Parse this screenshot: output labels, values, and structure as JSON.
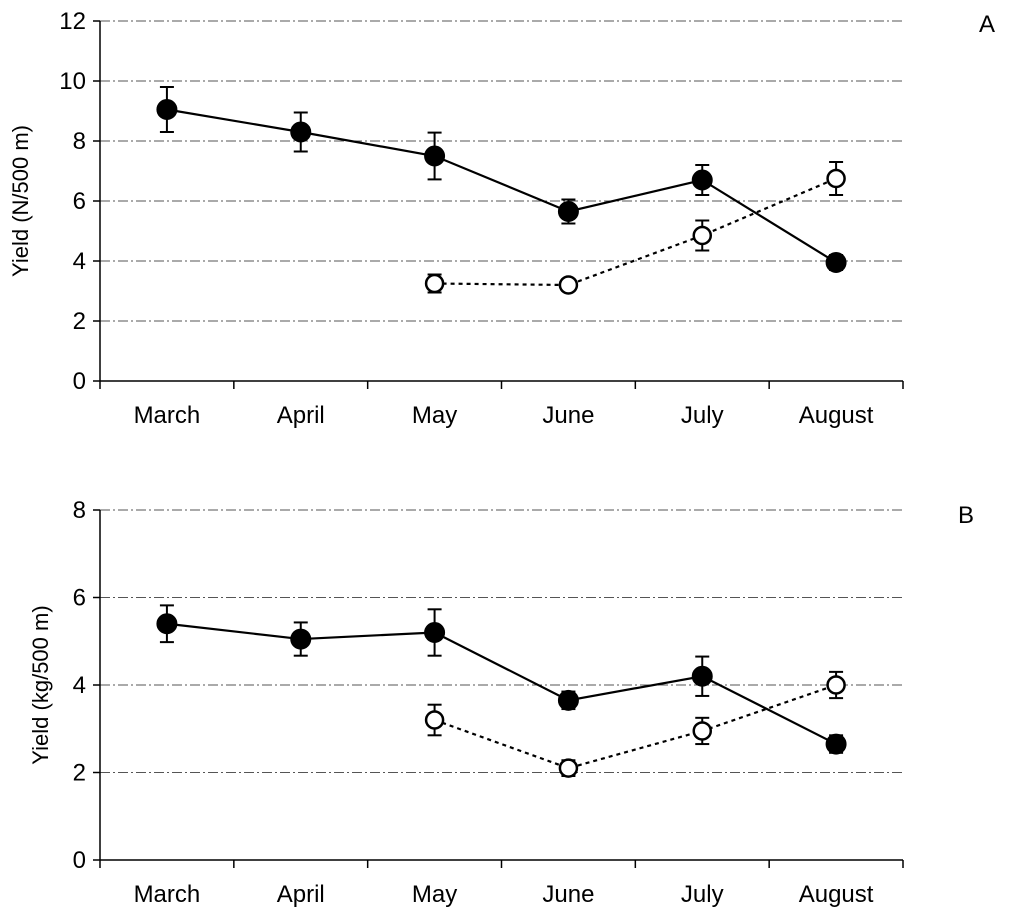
{
  "chart_data": [
    {
      "type": "line",
      "panel_label": "A",
      "title": "",
      "xlabel": "",
      "ylabel": "Yield (N/500 m)",
      "categories": [
        "March",
        "April",
        "May",
        "June",
        "July",
        "August"
      ],
      "ylim": [
        0,
        12
      ],
      "yticks": [
        0,
        2,
        4,
        6,
        8,
        10,
        12
      ],
      "ytick_labels": [
        "0",
        "2",
        "4",
        "6",
        "8",
        "10",
        "12"
      ],
      "grid": "horizontal",
      "series": [
        {
          "marker": "filled-circle",
          "line": "solid",
          "values": [
            9.05,
            8.3,
            7.5,
            5.65,
            6.7,
            3.95
          ],
          "errors": [
            0.75,
            0.65,
            0.78,
            0.4,
            0.5,
            0.25
          ]
        },
        {
          "marker": "open-circle",
          "line": "dotted",
          "values": [
            null,
            null,
            3.25,
            3.2,
            4.85,
            6.75
          ],
          "errors": [
            null,
            null,
            0.3,
            0.2,
            0.5,
            0.55
          ]
        }
      ]
    },
    {
      "type": "line",
      "panel_label": "B",
      "title": "",
      "xlabel": "",
      "ylabel": "Yield (kg/500 m)",
      "categories": [
        "March",
        "April",
        "May",
        "June",
        "July",
        "August"
      ],
      "ylim": [
        0,
        8
      ],
      "yticks": [
        0,
        2,
        4,
        6,
        8
      ],
      "ytick_labels": [
        "0",
        "2",
        "4",
        "6",
        "8"
      ],
      "grid": "horizontal",
      "series": [
        {
          "marker": "filled-circle",
          "line": "solid",
          "values": [
            5.4,
            5.05,
            5.2,
            3.65,
            4.2,
            2.65
          ],
          "errors": [
            0.42,
            0.38,
            0.53,
            0.2,
            0.45,
            0.2
          ]
        },
        {
          "marker": "open-circle",
          "line": "dotted",
          "values": [
            null,
            null,
            3.2,
            2.1,
            2.95,
            4.0
          ],
          "errors": [
            null,
            null,
            0.35,
            0.18,
            0.3,
            0.3
          ]
        }
      ]
    }
  ]
}
